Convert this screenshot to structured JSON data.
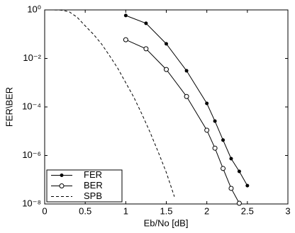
{
  "chart_data": {
    "type": "line",
    "x_label": "Eb/No [dB]",
    "y_label": "FER\\BER",
    "xlim": [
      0,
      3
    ],
    "xticks": [
      0,
      0.5,
      1,
      1.5,
      2,
      2.5,
      3
    ],
    "ylim": [
      1e-08,
      1
    ],
    "y_scale": "log",
    "yticks": [
      {
        "value": 1,
        "label": "10⁰"
      },
      {
        "value": 0.01,
        "label": "10⁻²"
      },
      {
        "value": 0.0001,
        "label": "10⁻⁴"
      },
      {
        "value": 1e-06,
        "label": "10⁻⁶"
      },
      {
        "value": 1e-08,
        "label": "10⁻⁸"
      }
    ],
    "legend": "lower left",
    "series": [
      {
        "name": "FER",
        "color": "#000000",
        "marker": "dot",
        "dash": "solid",
        "x": [
          1,
          1.25,
          1.5,
          1.75,
          2,
          2.1,
          2.2,
          2.3,
          2.4,
          2.5
        ],
        "values": [
          0.59,
          0.28,
          0.04,
          0.0031,
          0.00014,
          2.6e-05,
          4.3e-06,
          7.4e-07,
          2.2e-07,
          5.7e-08
        ]
      },
      {
        "name": "BER",
        "color": "#000000",
        "marker": "circle",
        "dash": "solid",
        "x": [
          1,
          1.25,
          1.5,
          1.75,
          2,
          2.1,
          2.2,
          2.3,
          2.4
        ],
        "values": [
          0.059,
          0.025,
          0.0035,
          0.00027,
          1.1e-05,
          2e-06,
          2.9e-07,
          4.4e-08,
          1.07e-08
        ]
      },
      {
        "name": "SPB",
        "color": "#000000",
        "marker": "none",
        "dash": "dashed",
        "x": [
          0,
          0.1,
          0.2,
          0.3,
          0.4,
          0.5,
          0.6,
          0.7,
          0.8,
          0.9,
          1,
          1.1,
          1.2,
          1.3,
          1.4,
          1.5,
          1.6
        ],
        "values": [
          1,
          1,
          0.98,
          0.85,
          0.5,
          0.22,
          0.1,
          0.04,
          0.013,
          0.004,
          0.001,
          0.00025,
          5e-05,
          9e-06,
          1.4e-06,
          2e-07,
          2e-08
        ]
      }
    ]
  }
}
